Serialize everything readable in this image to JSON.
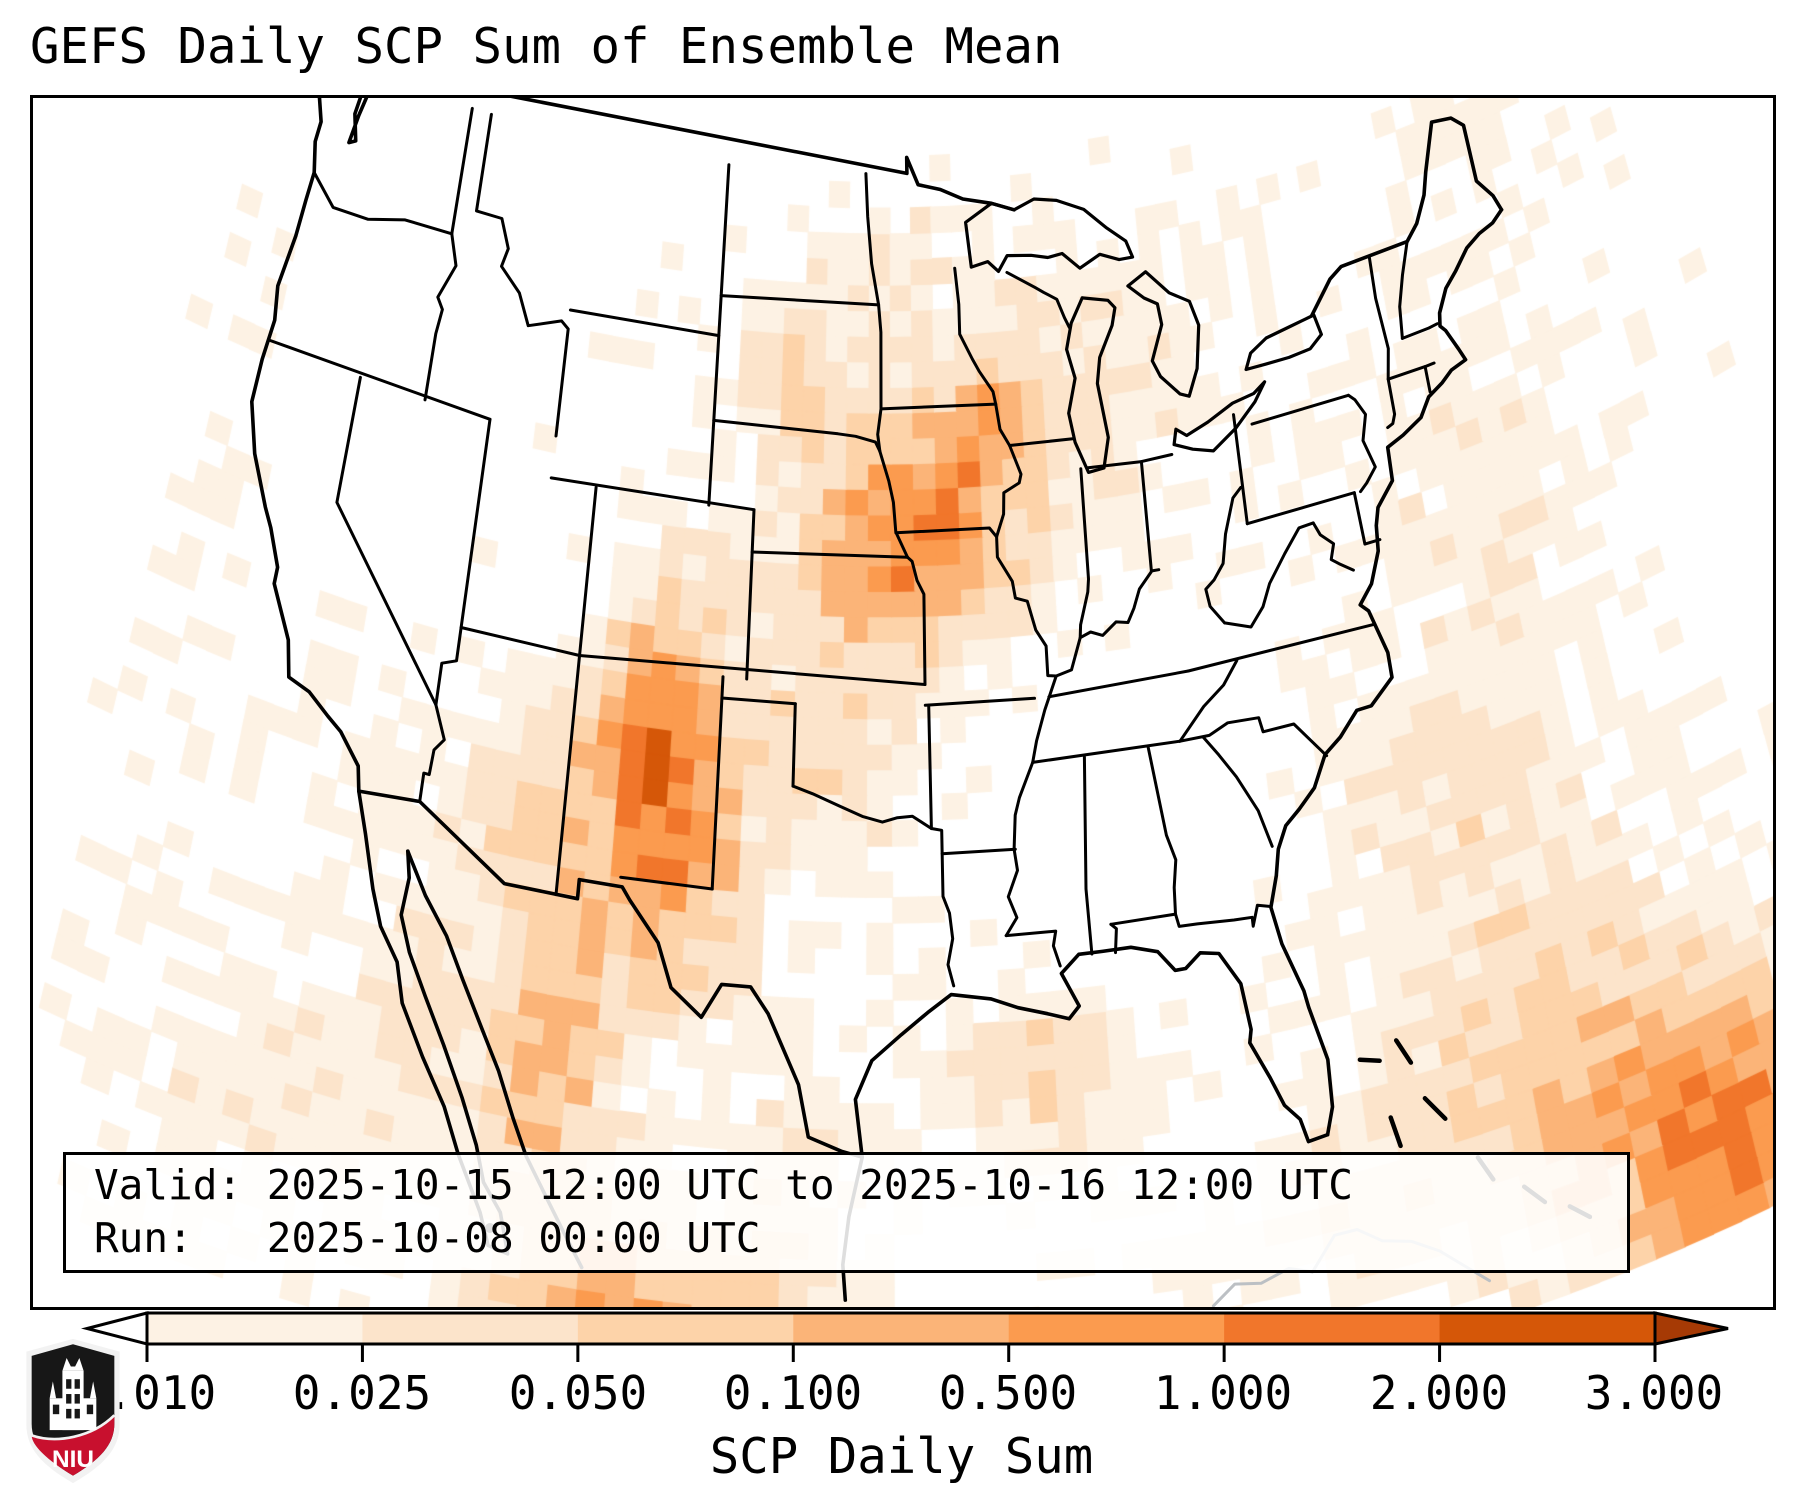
{
  "title": "GEFS Daily SCP Sum of Ensemble Mean",
  "info_box": {
    "valid_line": "Valid: 2025-10-15 12:00 UTC to 2025-10-16 12:00 UTC",
    "run_line": "Run:   2025-10-08 00:00 UTC"
  },
  "colorbar": {
    "label": "SCP Daily Sum",
    "tick_labels": [
      "0.010",
      "0.025",
      "0.050",
      "0.100",
      "0.500",
      "1.000",
      "2.000",
      "3.000"
    ],
    "segment_colors": [
      "#fdf2e4",
      "#fce4cb",
      "#fdd3a9",
      "#fbb478",
      "#fb9b4f",
      "#f1762b",
      "#d55708"
    ],
    "under_color": "#ffffff",
    "over_color": "#a63a05"
  },
  "logo": {
    "text": "NIU",
    "shield_dark": "#171717",
    "shield_red": "#c8102e",
    "trim": "#f2f2f2"
  },
  "map_style": {
    "coast_color": "#000000",
    "state_color": "#000000",
    "foreign_coast_color": "#bcc0c4",
    "background": "#ffffff"
  },
  "chart_data": {
    "type": "heatmap",
    "title": "GEFS Daily SCP Sum of Ensemble Mean",
    "valid_period": "2025-10-15 12:00 UTC to 2025-10-16 12:00 UTC",
    "run": "2025-10-08 00:00 UTC",
    "colorbar_label": "SCP Daily Sum",
    "scale_breaks": [
      0.01,
      0.025,
      0.05,
      0.1,
      0.5,
      1.0,
      2.0,
      3.0
    ],
    "colors": {
      "segments": [
        "#fdf2e4",
        "#fce4cb",
        "#fdd3a9",
        "#fbb478",
        "#fb9b4f",
        "#f1762b",
        "#d55708"
      ],
      "under": "#ffffff",
      "over": "#a63a05"
    },
    "projection": {
      "type": "lambert_conformal",
      "std_parallels": [
        33,
        45
      ],
      "center_lon": -96.5,
      "ref_lat": 39
    },
    "extent": {
      "lon": [
        -126.4,
        -64.9
      ],
      "lat": [
        22.55,
        50.75
      ]
    },
    "grid_step_deg": {
      "lon": 1.0,
      "lat": 0.6
    },
    "hotspot_format": [
      "lon",
      "lat",
      "sigma_lon",
      "sigma_lat",
      "amplitude_level"
    ],
    "hotspots": [
      [
        -96.8,
        41.3,
        2.2,
        1.5,
        2.6
      ],
      [
        -95.6,
        39.0,
        2.8,
        1.1,
        2.6
      ],
      [
        -93.4,
        41.3,
        1.9,
        1.3,
        2.4
      ],
      [
        -91.3,
        43.3,
        1.7,
        1.2,
        2.2
      ],
      [
        -100.4,
        44.4,
        1.4,
        1.0,
        2.4
      ],
      [
        -97.5,
        41.5,
        6.0,
        4.5,
        1.3
      ],
      [
        -105.2,
        36.5,
        2.0,
        2.2,
        3.0
      ],
      [
        -106.0,
        34.2,
        1.9,
        2.1,
        3.3
      ],
      [
        -103.9,
        31.6,
        2.1,
        2.3,
        3.1
      ],
      [
        -110.9,
        33.8,
        1.8,
        2.0,
        2.4
      ],
      [
        -108.7,
        27.8,
        1.8,
        2.8,
        3.9
      ],
      [
        -105.2,
        22.2,
        3.4,
        1.9,
        4.4
      ],
      [
        -99.6,
        24.6,
        1.5,
        1.8,
        2.2
      ],
      [
        -113.7,
        28.6,
        1.3,
        2.2,
        1.7
      ],
      [
        -98.7,
        35.3,
        2.5,
        1.8,
        1.9
      ],
      [
        -89.2,
        42.2,
        4.0,
        3.0,
        1.2
      ],
      [
        -85.0,
        44.8,
        3.6,
        2.6,
        0.9
      ],
      [
        -96.2,
        47.6,
        2.6,
        1.8,
        1.0
      ],
      [
        -70.8,
        39.8,
        3.6,
        3.0,
        1.3
      ],
      [
        -73.5,
        31.5,
        4.6,
        3.6,
        1.8
      ],
      [
        -71.5,
        24.0,
        4.2,
        3.0,
        3.2
      ],
      [
        -66.0,
        21.5,
        3.2,
        2.6,
        4.8
      ],
      [
        -91.6,
        27.2,
        3.6,
        2.2,
        1.3
      ],
      [
        -89.9,
        27.9,
        1.9,
        1.3,
        1.6
      ],
      [
        -80.6,
        23.6,
        2.8,
        1.5,
        1.7
      ],
      [
        -124.6,
        39.5,
        1.7,
        5.5,
        0.8
      ],
      [
        -117.6,
        33.6,
        2.2,
        1.6,
        1.1
      ],
      [
        -118.5,
        25.5,
        4.0,
        3.0,
        1.5
      ],
      [
        -67.5,
        47.5,
        3.0,
        2.0,
        0.8
      ],
      [
        -86.2,
        33.2,
        3.2,
        2.6,
        -1.1
      ],
      [
        -103.0,
        50.8,
        11.0,
        1.7,
        -1.2
      ],
      [
        -120.5,
        45.0,
        3.6,
        3.2,
        -0.9
      ]
    ]
  }
}
